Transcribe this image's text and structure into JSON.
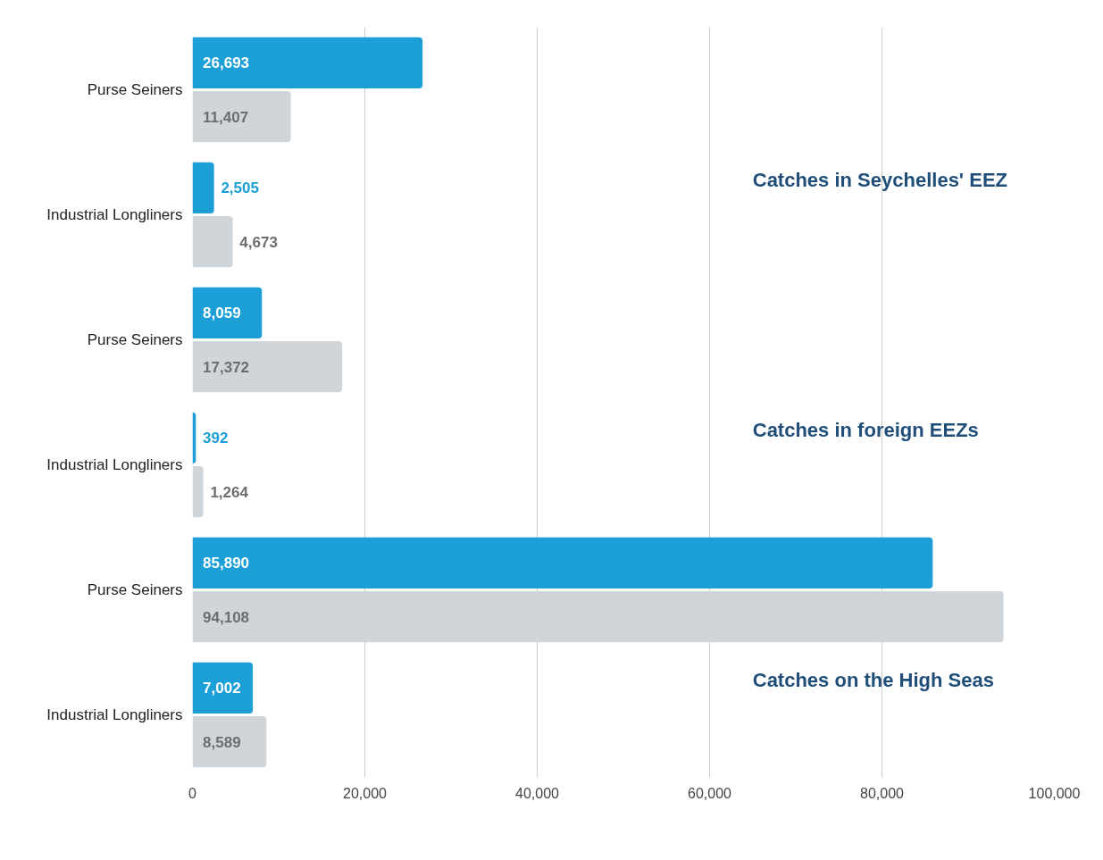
{
  "chart_data": {
    "type": "bar",
    "orientation": "horizontal",
    "categories": [
      "Purse Seiners",
      "Industrial Longliners",
      "Purse Seiners",
      "Industrial Longliners",
      "Purse Seiners",
      "Industrial Longliners"
    ],
    "series": [
      {
        "color": "#1b9fd6",
        "values": [
          26693,
          2505,
          8059,
          392,
          85890,
          7002
        ],
        "value_labels": [
          "26,693",
          "2,505",
          "8,059",
          "392",
          "85,890",
          "7,002"
        ]
      },
      {
        "color": "#d0d5d9",
        "values": [
          11407,
          4673,
          17372,
          1264,
          94108,
          8589
        ],
        "value_labels": [
          "11,407",
          "4,673",
          "17,372",
          "1,264",
          "94,108",
          "8,589"
        ]
      }
    ],
    "xlim": [
      0,
      100000
    ],
    "xticks": [
      0,
      {
        "value": 20000,
        "label": "20,000"
      },
      {
        "value": 40000,
        "label": "40,000"
      },
      {
        "value": 60000,
        "label": "60,000"
      },
      {
        "value": 80000,
        "label": "80,000"
      },
      {
        "value": 100000,
        "label": "100,000"
      }
    ],
    "grid": "x",
    "annotations": [
      "Catches in Seychelles' EEZ",
      "Catches in foreign EEZs",
      "Catches on the High Seas"
    ]
  }
}
